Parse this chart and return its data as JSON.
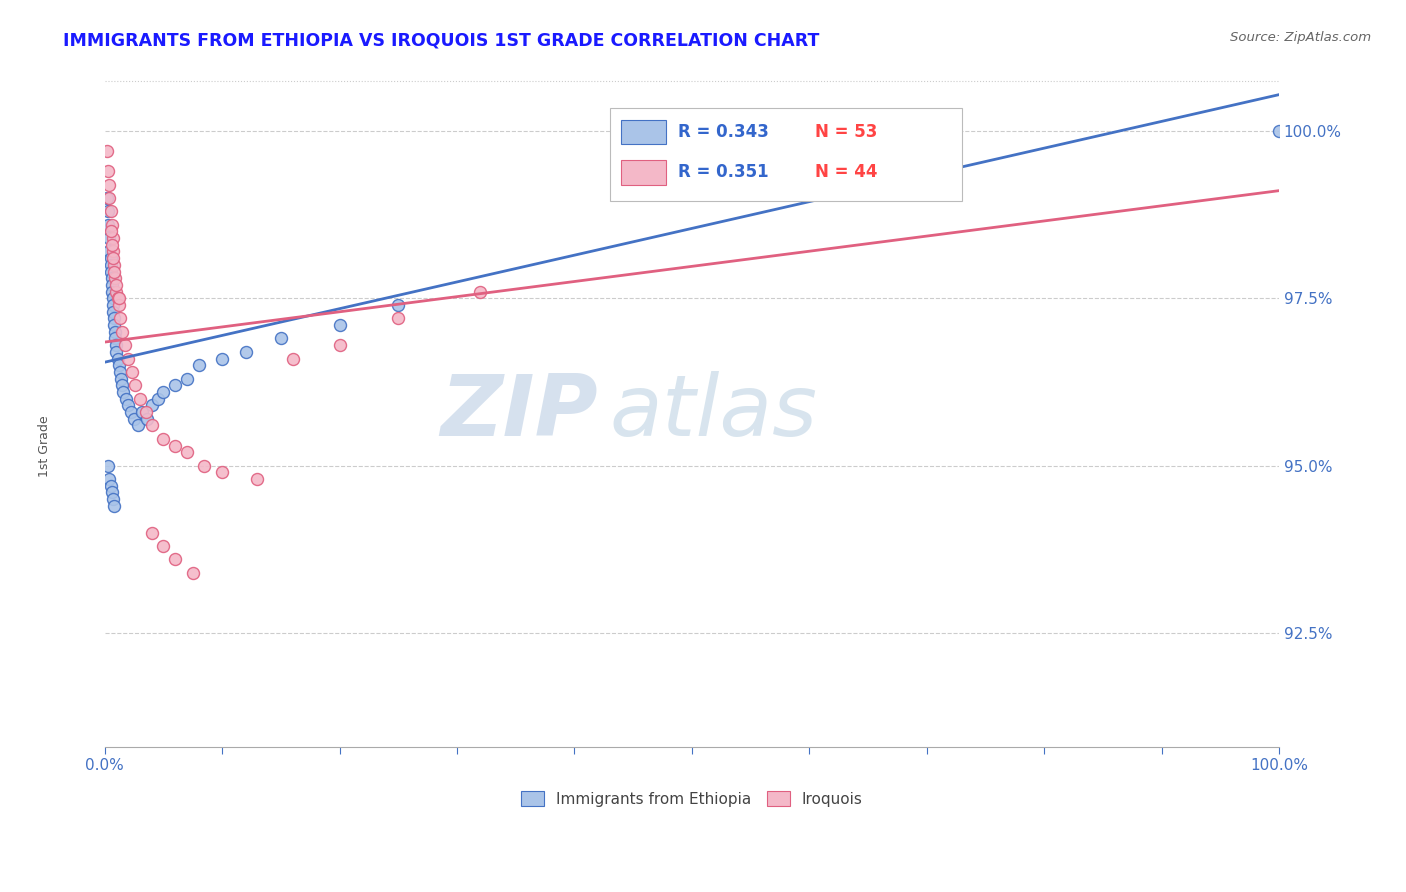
{
  "title": "IMMIGRANTS FROM ETHIOPIA VS IROQUOIS 1ST GRADE CORRELATION CHART",
  "source_text": "Source: ZipAtlas.com",
  "ylabel": "1st Grade",
  "x_min": 0.0,
  "x_max": 1.0,
  "y_min": 0.908,
  "y_max": 1.008,
  "y_tick_labels": [
    "92.5%",
    "95.0%",
    "97.5%",
    "100.0%"
  ],
  "y_tick_values": [
    0.925,
    0.95,
    0.975,
    1.0
  ],
  "legend_r1": "R = 0.343",
  "legend_n1": "N = 53",
  "legend_r2": "R = 0.351",
  "legend_n2": "N = 44",
  "color_blue": "#aac4e8",
  "color_pink": "#f4b8c8",
  "line_color_blue": "#4472c4",
  "line_color_pink": "#e06080",
  "watermark_zip": "ZIP",
  "watermark_atlas": "atlas",
  "blue_x": [
    0.002,
    0.003,
    0.003,
    0.004,
    0.004,
    0.005,
    0.005,
    0.005,
    0.006,
    0.006,
    0.006,
    0.007,
    0.007,
    0.007,
    0.008,
    0.008,
    0.009,
    0.009,
    0.01,
    0.01,
    0.011,
    0.012,
    0.013,
    0.014,
    0.015,
    0.016,
    0.018,
    0.02,
    0.022,
    0.025,
    0.028,
    0.032,
    0.036,
    0.04,
    0.045,
    0.05,
    0.06,
    0.07,
    0.08,
    0.1,
    0.12,
    0.15,
    0.2,
    0.25,
    0.003,
    0.004,
    0.005,
    0.006,
    0.007,
    0.008,
    0.55,
    0.65,
    1.0
  ],
  "blue_y": [
    0.99,
    0.988,
    0.986,
    0.984,
    0.982,
    0.981,
    0.98,
    0.979,
    0.978,
    0.977,
    0.976,
    0.975,
    0.974,
    0.973,
    0.972,
    0.971,
    0.97,
    0.969,
    0.968,
    0.967,
    0.966,
    0.965,
    0.964,
    0.963,
    0.962,
    0.961,
    0.96,
    0.959,
    0.958,
    0.957,
    0.956,
    0.958,
    0.957,
    0.959,
    0.96,
    0.961,
    0.962,
    0.963,
    0.965,
    0.966,
    0.967,
    0.969,
    0.971,
    0.974,
    0.95,
    0.948,
    0.947,
    0.946,
    0.945,
    0.944,
    0.998,
    0.999,
    1.0
  ],
  "pink_x": [
    0.002,
    0.003,
    0.004,
    0.004,
    0.005,
    0.006,
    0.007,
    0.007,
    0.008,
    0.009,
    0.01,
    0.011,
    0.012,
    0.013,
    0.015,
    0.017,
    0.02,
    0.023,
    0.026,
    0.03,
    0.035,
    0.04,
    0.05,
    0.06,
    0.07,
    0.085,
    0.1,
    0.13,
    0.16,
    0.2,
    0.25,
    0.32,
    0.005,
    0.006,
    0.007,
    0.008,
    0.01,
    0.012,
    0.58,
    0.64,
    0.04,
    0.05,
    0.06,
    0.075
  ],
  "pink_y": [
    0.997,
    0.994,
    0.992,
    0.99,
    0.988,
    0.986,
    0.984,
    0.982,
    0.98,
    0.978,
    0.976,
    0.975,
    0.974,
    0.972,
    0.97,
    0.968,
    0.966,
    0.964,
    0.962,
    0.96,
    0.958,
    0.956,
    0.954,
    0.953,
    0.952,
    0.95,
    0.949,
    0.948,
    0.966,
    0.968,
    0.972,
    0.976,
    0.985,
    0.983,
    0.981,
    0.979,
    0.977,
    0.975,
    0.998,
    0.999,
    0.94,
    0.938,
    0.936,
    0.934
  ]
}
